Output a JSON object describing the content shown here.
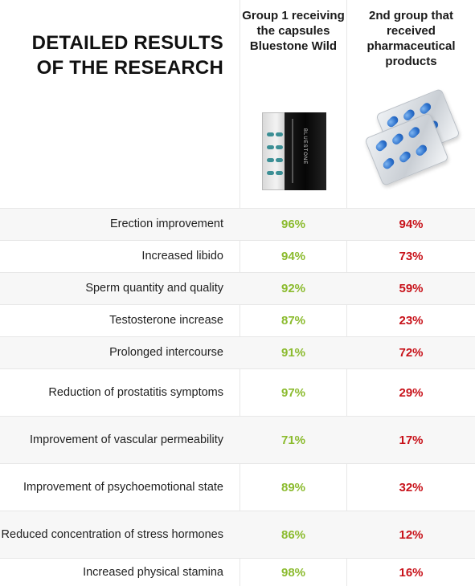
{
  "header": {
    "title": "DETAILED RESULTS OF THE RESEARCH",
    "group1": "Group 1 receiving the capsules Bluestone Wild",
    "group2": "2nd group that received pharmaceutical products",
    "group1_image": "bluestone-box-icon",
    "group2_image": "blister-pack-icon"
  },
  "colors": {
    "group1": "#8bbb2e",
    "group2": "#c8121a",
    "row_shade": "#f7f7f7"
  },
  "rows": [
    {
      "label": "Erection improvement",
      "g1": "96%",
      "g2": "94%"
    },
    {
      "label": "Increased libido",
      "g1": "94%",
      "g2": "73%"
    },
    {
      "label": "Sperm quantity and quality",
      "g1": "92%",
      "g2": "59%"
    },
    {
      "label": "Testosterone increase",
      "g1": "87%",
      "g2": "23%"
    },
    {
      "label": "Prolonged intercourse",
      "g1": "91%",
      "g2": "72%"
    },
    {
      "label": "Reduction of prostatitis symptoms",
      "g1": "97%",
      "g2": "29%"
    },
    {
      "label": "Improvement of vascular permeability",
      "g1": "71%",
      "g2": "17%"
    },
    {
      "label": "Improvement of psychoemotional state",
      "g1": "89%",
      "g2": "32%"
    },
    {
      "label": "Reduced concentration of stress hormones",
      "g1": "86%",
      "g2": "12%"
    },
    {
      "label": "Increased physical stamina",
      "g1": "98%",
      "g2": "16%"
    }
  ]
}
